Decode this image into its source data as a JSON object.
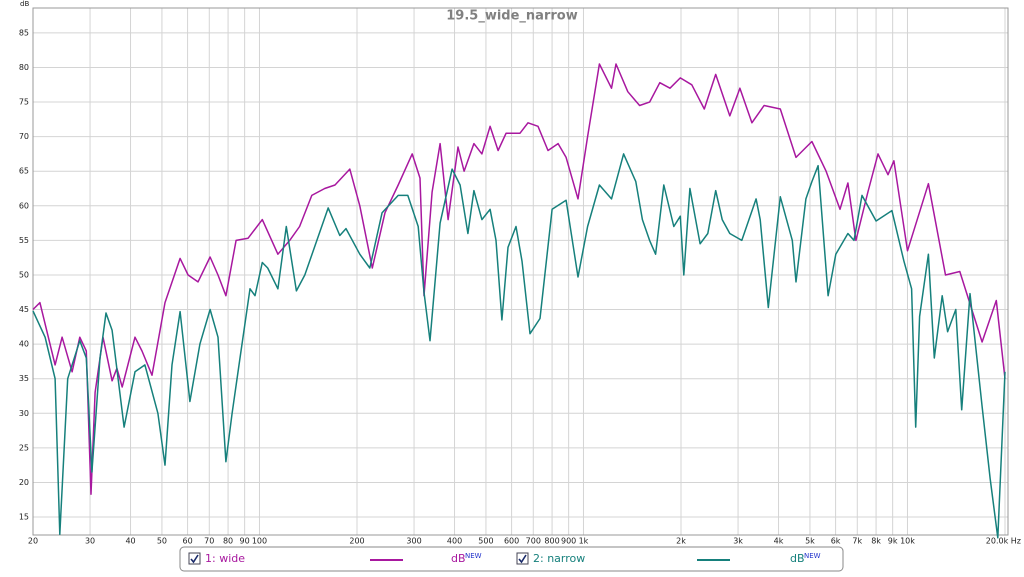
{
  "chart_data": {
    "type": "line",
    "title": "19.5_wide_narrow",
    "ylabel": "dB",
    "legend_unit": "dB",
    "legend_unit_tag": "NEW",
    "log_x": true,
    "grid": true,
    "xlim": [
      20,
      20430
    ],
    "ylim": [
      12.4,
      88.6
    ],
    "yticks": [
      15,
      20,
      25,
      30,
      35,
      40,
      45,
      50,
      55,
      60,
      65,
      70,
      75,
      80,
      85
    ],
    "xticks": [
      20,
      30,
      40,
      50,
      60,
      70,
      80,
      90,
      100,
      200,
      300,
      400,
      500,
      600,
      700,
      800,
      900,
      {
        "value": 1000,
        "label": "1k"
      },
      {
        "value": 2000,
        "label": "2k"
      },
      {
        "value": 3000,
        "label": "3k"
      },
      {
        "value": 4000,
        "label": "4k"
      },
      {
        "value": 5000,
        "label": "5k"
      },
      {
        "value": 6000,
        "label": "6k"
      },
      {
        "value": 7000,
        "label": "7k"
      },
      {
        "value": 8000,
        "label": "8k"
      },
      {
        "value": 9000,
        "label": "9k"
      },
      {
        "value": 10000,
        "label": "10k"
      },
      {
        "value": 20000,
        "label": "20.0k Hz"
      }
    ],
    "series": [
      {
        "name": "1: wide",
        "color": "#a8189f",
        "x": [
          20,
          21,
          23.4,
          24.6,
          26.4,
          27.9,
          29.2,
          30.2,
          31.1,
          32.9,
          35.1,
          36.3,
          37.7,
          41.3,
          43.4,
          46.6,
          51.1,
          56.9,
          60.2,
          64.6,
          70.4,
          74.5,
          78.8,
          84.7,
          92.2,
          102,
          114,
          124,
          133,
          145,
          159,
          171,
          190,
          204,
          223,
          244,
          268,
          296,
          313,
          322,
          341,
          361,
          382,
          410,
          428,
          459,
          486,
          515,
          545,
          577,
          637,
          674,
          724,
          777,
          835,
          884,
          962,
          1030,
          1120,
          1220,
          1260,
          1370,
          1490,
          1600,
          1720,
          1850,
          1990,
          2160,
          2360,
          2560,
          2830,
          3040,
          3310,
          3610,
          4050,
          4530,
          5070,
          5610,
          6190,
          6550,
          6930,
          7550,
          8110,
          8710,
          9080,
          10000,
          11600,
          13100,
          14500,
          17000,
          18800,
          20000
        ],
        "values": [
          45,
          46,
          37,
          41,
          36,
          41,
          39,
          18.3,
          33,
          41,
          34.7,
          36.5,
          33.8,
          41,
          39,
          35.5,
          46,
          52.4,
          50,
          49,
          52.6,
          50,
          47,
          55,
          55.3,
          58,
          53,
          55,
          57,
          61.5,
          62.5,
          63,
          65.3,
          60,
          51,
          59,
          63,
          67.5,
          64,
          47,
          62,
          69,
          58,
          68.5,
          65,
          69,
          67.5,
          71.5,
          68,
          70.5,
          70.5,
          72,
          71.5,
          68,
          69,
          67,
          61,
          70,
          80.5,
          77,
          80.5,
          76.5,
          74.5,
          75,
          77.8,
          77,
          78.5,
          77.5,
          74,
          79,
          73,
          77,
          72,
          74.5,
          74,
          67,
          69.3,
          65,
          59.5,
          63.3,
          55,
          62,
          67.5,
          64.5,
          66.5,
          53.5,
          63.2,
          50,
          50.5,
          40.3,
          46.3,
          35
        ]
      },
      {
        "name": "2: narrow",
        "color": "#16807c",
        "x": [
          20,
          21.8,
          23.4,
          24.2,
          25.6,
          27.9,
          29.2,
          30.4,
          32.2,
          33.6,
          35.1,
          38.2,
          41.3,
          44.3,
          48.6,
          51.1,
          53.7,
          56.9,
          61,
          65.5,
          70.4,
          74.5,
          78.8,
          82.3,
          87.1,
          93.5,
          96.9,
          102,
          106,
          114,
          121,
          130,
          138,
          163,
          177,
          185,
          204,
          219,
          239,
          268,
          287,
          309,
          322,
          336,
          361,
          393,
          416,
          440,
          459,
          486,
          515,
          537,
          560,
          585,
          619,
          646,
          684,
          734,
          800,
          884,
          962,
          1030,
          1120,
          1220,
          1330,
          1450,
          1520,
          1600,
          1670,
          1770,
          1900,
          1990,
          2040,
          2130,
          2290,
          2420,
          2560,
          2680,
          2830,
          3080,
          3410,
          3510,
          3720,
          4050,
          4410,
          4530,
          4860,
          5070,
          5300,
          5690,
          6010,
          6550,
          6840,
          7240,
          8000,
          8950,
          9750,
          10300,
          10600,
          10900,
          11600,
          12100,
          12800,
          13300,
          14100,
          14700,
          15600,
          17000,
          18000,
          19000,
          20000
        ],
        "values": [
          44.8,
          41,
          35,
          12.5,
          35,
          40.5,
          38,
          21.5,
          38,
          44.5,
          42,
          28,
          36,
          37,
          30,
          22.5,
          37,
          44.7,
          31.7,
          40,
          45,
          41,
          23,
          30,
          38,
          48,
          47,
          51.8,
          51,
          48,
          57,
          47.7,
          50,
          59.7,
          55.7,
          56.7,
          53,
          51,
          59,
          61.5,
          61.5,
          57,
          47.5,
          40.5,
          57.5,
          65.3,
          63,
          56,
          62.2,
          58,
          59.5,
          55,
          43.5,
          54,
          57,
          52,
          41.5,
          43.7,
          59.5,
          60.8,
          49.7,
          57,
          63,
          61,
          67.5,
          63.5,
          58,
          55,
          53,
          63,
          57,
          58.5,
          50,
          62.5,
          54.5,
          56,
          62.2,
          58,
          56,
          55,
          61,
          58,
          45.3,
          61.3,
          55,
          49,
          61,
          63.5,
          65.8,
          47,
          53,
          56,
          55,
          61.5,
          57.8,
          59.3,
          52,
          48,
          28,
          44,
          53,
          38,
          47,
          41.8,
          45,
          30.5,
          47.3,
          31,
          20.5,
          12,
          36
        ]
      }
    ]
  }
}
